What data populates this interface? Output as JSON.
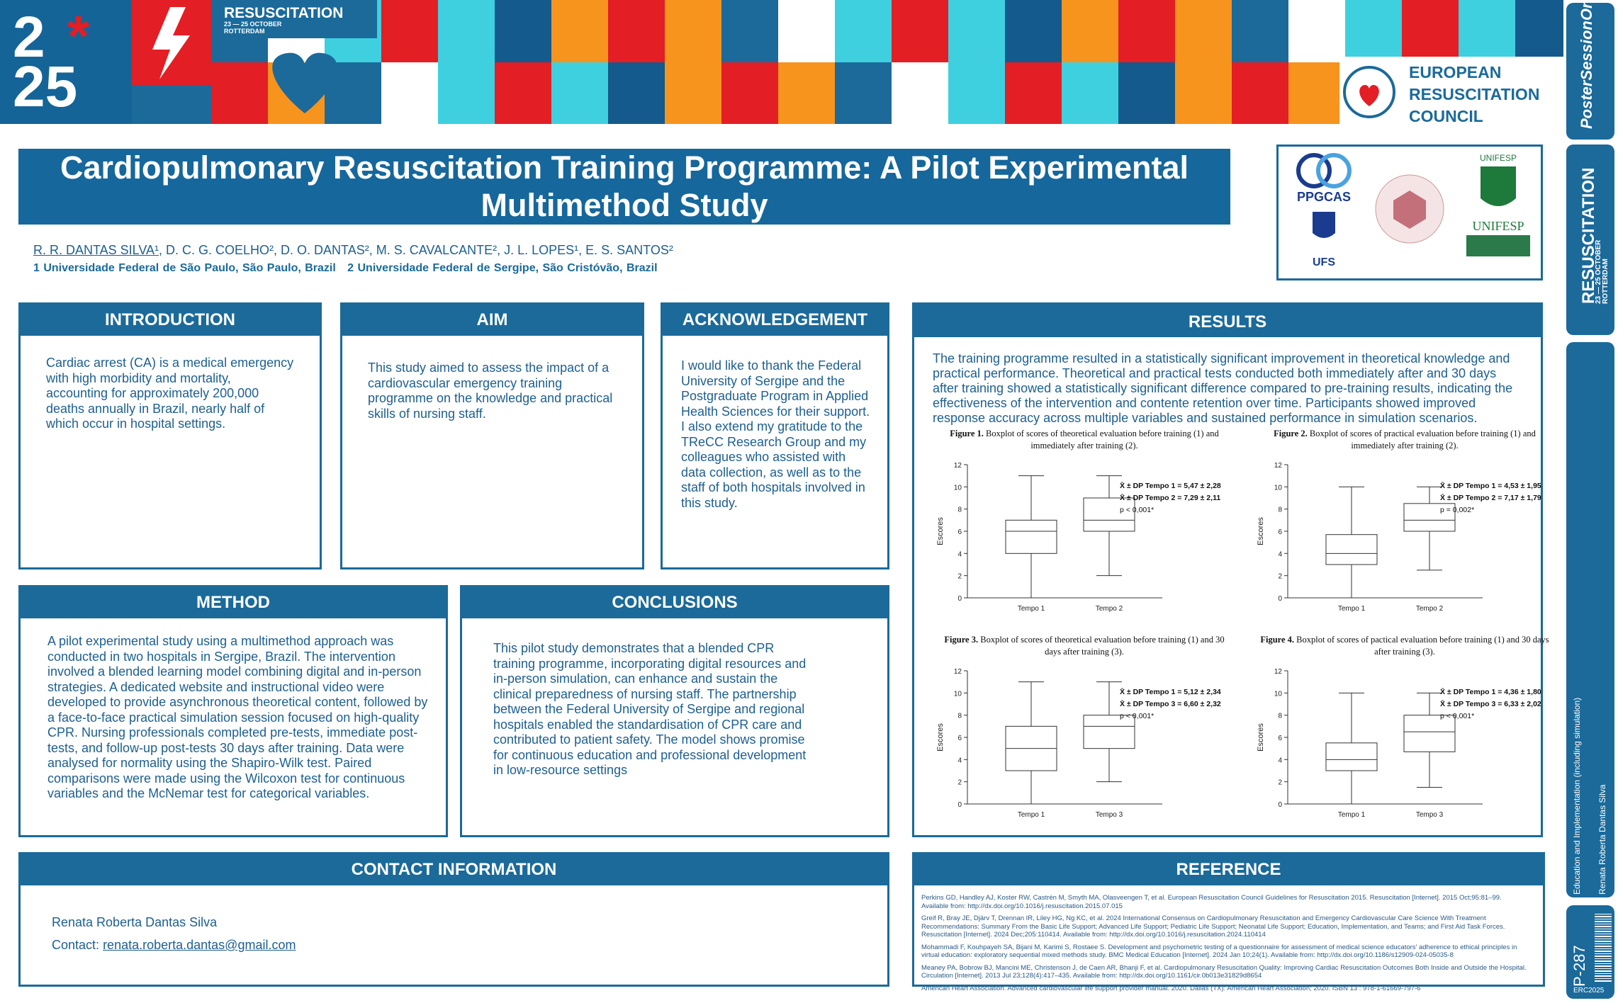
{
  "banner": {
    "logo_year_top": "2",
    "logo_year_bottom": "25",
    "event": "RESUSCITATION",
    "dates": "23 — 25 OCTOBER",
    "city": "ROTTERDAM",
    "organisation": [
      "EUROPEAN",
      "RESUSCITATION",
      "COUNCIL"
    ]
  },
  "title": "Cardiopulmonary Resuscitation Training Programme: A Pilot Experimental Multimethod Study",
  "authors": {
    "presenting": "R. R. DANTAS SILVA¹",
    "others": ", D. C. G. COELHO², D. O. DANTAS², M. S. CAVALCANTE², J. L. LOPES¹, E. S. SANTOS²"
  },
  "affiliations": [
    "1 Universidade Federal de São Paulo, São Paulo, Brazil",
    "2 Universidade Federal de Sergipe, São Cristóvão, Brazil"
  ],
  "logos": [
    "PPGCAS",
    "UFS",
    "UNIFESP",
    "UNIFESP"
  ],
  "sections": {
    "introduction": {
      "heading": "INTRODUCTION",
      "text": "Cardiac arrest (CA) is a medical emergency with high morbidity and mortality, accounting for approximately 200,000 deaths annually in Brazil, nearly half of which occur in hospital settings."
    },
    "aim": {
      "heading": "AIM",
      "text": "This study aimed to assess the impact of a cardiovascular emergency training programme on the knowledge and practical skills of nursing staff."
    },
    "acknowledgement": {
      "heading": "ACKNOWLEDGEMENT",
      "text": "I would like to thank the Federal University of Sergipe and the Postgraduate Program in Applied Health Sciences for their support. I also extend my gratitude to the TReCC Research Group and my colleagues who assisted with data collection, as well as to the staff of both hospitals involved in this study."
    },
    "method": {
      "heading": "METHOD",
      "text": "A pilot experimental study using a multimethod approach was conducted in two hospitals in Sergipe, Brazil. The intervention involved a blended learning model combining digital and in-person strategies. A dedicated website and instructional video were developed to provide asynchronous theoretical content, followed by a face-to-face practical simulation session focused on high-quality CPR. Nursing professionals completed pre-tests, immediate post-tests, and follow-up post-tests 30 days after training. Data were analysed for normality using the Shapiro-Wilk test. Paired comparisons were made using the Wilcoxon test for continuous variables and the McNemar test for categorical variables."
    },
    "conclusions": {
      "heading": "CONCLUSIONS",
      "text": "This pilot study demonstrates that a blended CPR training programme, incorporating digital resources and in-person simulation, can enhance and sustain the clinical preparedness of nursing staff. The partnership between the Federal University of Sergipe and regional hospitals enabled the standardisation of CPR care and contributed to patient safety. The model shows promise for continuous education and professional development in low-resource settings"
    },
    "results": {
      "heading": "RESULTS",
      "text": "The training programme resulted in a statistically significant improvement in theoretical knowledge and practical performance. Theoretical and practical tests conducted both immediately after and 30 days after training showed a statistically significant difference compared to pre-training results, indicating the effectiveness of the intervention and contente retention over time. Participants showed improved response accuracy across multiple variables and sustained performance in simulation scenarios."
    },
    "contact": {
      "heading": "CONTACT INFORMATION",
      "name": "Renata Roberta Dantas Silva",
      "label": "Contact:",
      "email": "renata.roberta.dantas@gmail.com"
    },
    "reference": {
      "heading": "REFERENCE",
      "items": [
        "Perkins GD, Handley AJ, Koster RW, Castrén M, Smyth MA, Olasveengen T, et al. European Resuscitation Council Guidelines for Resuscitation 2015. Resuscitation [Internet]. 2015 Oct;95:81–99. Available from: http://dx.doi.org/10.1016/j.resuscitation.2015.07.015",
        "Greif R, Bray JE, Djärv T, Drennan IR, Liley HG, Ng KC, et al. 2024 International Consensus on Cardiopulmonary Resuscitation and Emergency Cardiovascular Care Science With Treatment Recommendations: Summary From the Basic Life Support; Advanced Life Support; Pediatric Life Support; Neonatal Life Support; Education, Implementation, and Teams; and First Aid Task Forces. Resuscitation [Internet]. 2024 Dec;205:110414. Available from: http://dx.doi.org/10.1016/j.resuscitation.2024.110414",
        "Mohammadi F, Kouhpayeh SA, Bijani M, Karimi S, Rostaee S. Development and psychometric testing of a questionnaire for assessment of medical science educators' adherence to ethical principles in virtual education: exploratory sequential mixed methods study. BMC Medical Education [Internet]. 2024 Jan 10;24(1). Available from: http://dx.doi.org/10.1186/s12909-024-05035-8",
        "Meaney PA, Bobrow BJ, Mancini ME, Christenson J, de Caen AR, Bhanji F, et al. Cardiopulmonary Resuscitation Quality: Improving Cardiac Resuscitation Outcomes Both Inside and Outside the Hospital. Circulation [Internet]. 2013 Jul 23;128(4):417–435. Available from: http://dx.doi.org/10.1161/cir.0b013e31829d8654",
        "American Heart Association. Advanced cardiovascular life support provider manual. 2020. Dallas (TX): American Heart Association; 2020. ISBN 13 : 978-1-61669-797-6"
      ]
    }
  },
  "chart_data": [
    {
      "type": "boxplot",
      "label": "Figure 1.",
      "caption": "Boxplot of scores of theoretical evaluation before training (1) and immediately after training (2).",
      "y_label": "Escores",
      "categories": [
        "Tempo 1",
        "Tempo 2"
      ],
      "boxes": [
        {
          "min": 0,
          "q1": 4,
          "median": 6,
          "q3": 7,
          "max": 11
        },
        {
          "min": 2,
          "q1": 6,
          "median": 7,
          "q3": 9,
          "max": 11
        }
      ],
      "ylim": [
        0,
        12
      ],
      "yticks": [
        0,
        2,
        4,
        6,
        8,
        10,
        12
      ],
      "stats": [
        "X̄ ± DP Tempo 1 = 5,47 ± 2,28",
        "X̄ ± DP Tempo 2 = 7,29 ± 2,11",
        "p < 0,001*"
      ]
    },
    {
      "type": "boxplot",
      "label": "Figure 2.",
      "caption": "Boxplot of scores of practical evaluation before training (1) and immediately after training (2).",
      "y_label": "Escores",
      "categories": [
        "Tempo 1",
        "Tempo 2"
      ],
      "boxes": [
        {
          "min": 0,
          "q1": 3,
          "median": 4,
          "q3": 5.7,
          "max": 10
        },
        {
          "min": 2.5,
          "q1": 6,
          "median": 7,
          "q3": 8.5,
          "max": 10
        }
      ],
      "ylim": [
        0,
        12
      ],
      "yticks": [
        0,
        2,
        4,
        6,
        8,
        10,
        12
      ],
      "stats": [
        "X̄ ± DP Tempo 1 = 4,53 ± 1,95",
        "X̄ ± DP Tempo 2 = 7,17 ± 1,79",
        "p = 0,002*"
      ]
    },
    {
      "type": "boxplot",
      "label": "Figure 3.",
      "caption": "Boxplot of scores of theoretical evaluation before training (1) and 30 days after training (3).",
      "y_label": "Escores",
      "categories": [
        "Tempo 1",
        "Tempo 3"
      ],
      "boxes": [
        {
          "min": 0,
          "q1": 3,
          "median": 5,
          "q3": 7,
          "max": 11
        },
        {
          "min": 2,
          "q1": 5,
          "median": 7,
          "q3": 8,
          "max": 11
        }
      ],
      "ylim": [
        0,
        12
      ],
      "yticks": [
        0,
        2,
        4,
        6,
        8,
        10,
        12
      ],
      "stats": [
        "X̄ ± DP Tempo 1 = 5,12 ± 2,34",
        "X̄ ± DP Tempo 3 = 6,60 ± 2,32",
        "p < 0,001*"
      ]
    },
    {
      "type": "boxplot",
      "label": "Figure 4.",
      "caption": "Boxplot of scores of pactical evaluation before training (1) and 30 days after training (3).",
      "y_label": "Escores",
      "categories": [
        "Tempo 1",
        "Tempo 3"
      ],
      "boxes": [
        {
          "min": 0,
          "q1": 3,
          "median": 4,
          "q3": 5.5,
          "max": 10
        },
        {
          "min": 1.5,
          "q1": 4.7,
          "median": 6.5,
          "q3": 8,
          "max": 10
        }
      ],
      "ylim": [
        0,
        12
      ],
      "yticks": [
        0,
        2,
        4,
        6,
        8,
        10,
        12
      ],
      "stats": [
        "X̄ ± DP Tempo 1 = 4,36 ± 1,80",
        "X̄ ± DP Tempo 3 = 6,33 ± 2,02",
        "p < 0,001*"
      ]
    }
  ],
  "sidebar": {
    "brand": "PosterSessionOnline",
    "topic": "Education and Implementation (including simulation)",
    "author": "Renata Roberta Dantas Silva",
    "poster_id": "P-287",
    "code": "ERC2025"
  }
}
